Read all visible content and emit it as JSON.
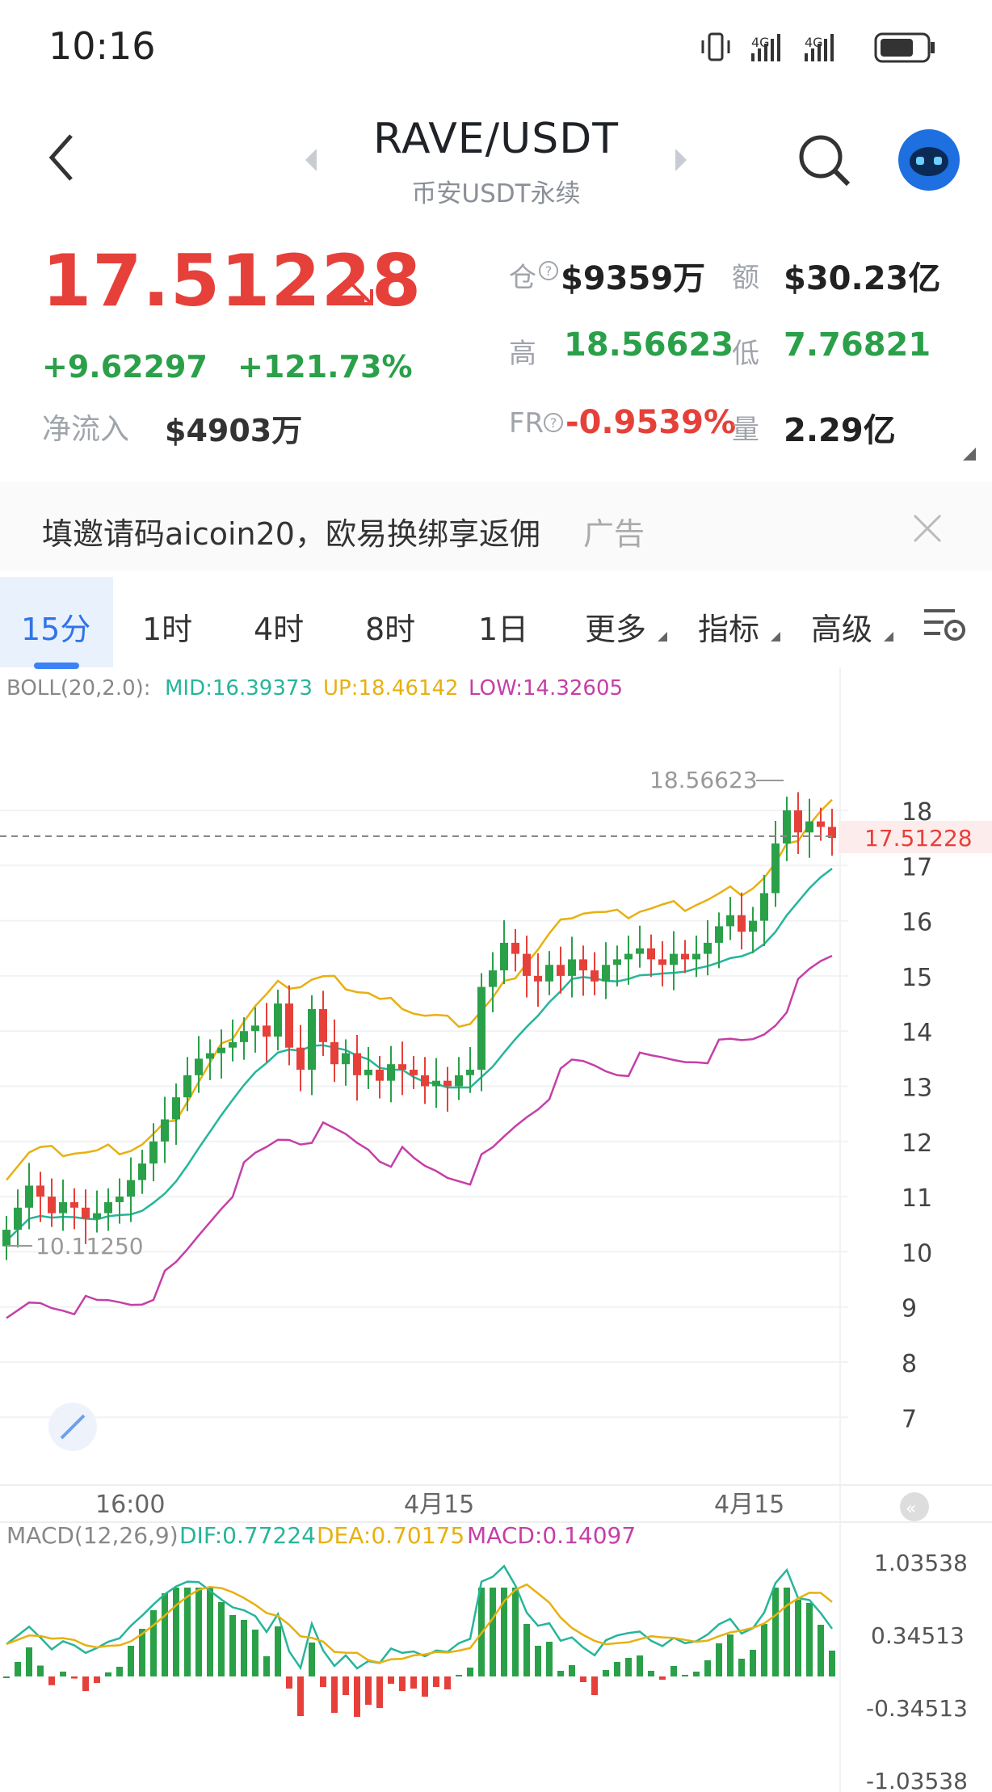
{
  "status_bar": {
    "time": "10:16",
    "net1": "4G",
    "net2": "4G"
  },
  "header": {
    "pair": "RAVE/USDT",
    "exchange": "币安USDT永续"
  },
  "price": {
    "last": "17.51228",
    "change_abs": "+9.62297",
    "change_pct": "+121.73%",
    "netflow_label": "净流入",
    "netflow_value": "$4903万"
  },
  "stats": {
    "oi_label": "仓",
    "oi_value": "$9359万",
    "turnover_label": "额",
    "turnover_value": "$30.23亿",
    "high_label": "高",
    "high_value": "18.56623",
    "low_label": "低",
    "low_value": "7.76821",
    "fr_label": "FR",
    "fr_value": "-0.9539%",
    "vol_label": "量",
    "vol_value": "2.29亿"
  },
  "ad": {
    "text": "填邀请码aicoin20，欧易换绑享返佣",
    "tag": "广告"
  },
  "tabs": [
    {
      "label": "15分",
      "active": true
    },
    {
      "label": "1时"
    },
    {
      "label": "4时"
    },
    {
      "label": "8时"
    },
    {
      "label": "1日"
    },
    {
      "label": "更多"
    },
    {
      "label": "指标"
    },
    {
      "label": "高级"
    }
  ],
  "boll": {
    "name": "BOLL(20,2.0):",
    "mid": "MID:16.39373",
    "up": "UP:18.46142",
    "low": "LOW:14.32605",
    "color_mid": "#26b59a",
    "color_up": "#e8b010",
    "color_low": "#c53fa7"
  },
  "macd": {
    "name": "MACD(12,26,9)",
    "dif": "DIF:0.77224",
    "dea": "DEA:0.70175",
    "macd": "MACD:0.14097",
    "axis": [
      "1.03538",
      "0.34513",
      "-0.34513",
      "-1.03538"
    ]
  },
  "chart_data": {
    "type": "candlestick",
    "y_axis_ticks": [
      18,
      17,
      16,
      15,
      14,
      13,
      12,
      11,
      10,
      9,
      8,
      7
    ],
    "x_axis_labels": [
      "16:00",
      "4月15",
      "4月15"
    ],
    "current_price_label": "17.51228",
    "high_marker_label": "18.56623",
    "low_marker_label": "10.11250",
    "colors": {
      "up": "#2aa049",
      "down": "#e6403a"
    },
    "close_series": [
      10.4,
      10.8,
      11.2,
      11.0,
      10.7,
      10.9,
      10.8,
      10.6,
      10.7,
      10.9,
      11.0,
      11.3,
      11.6,
      12.0,
      12.4,
      12.8,
      13.2,
      13.5,
      13.6,
      13.7,
      13.8,
      14.0,
      14.1,
      13.9,
      14.5,
      13.7,
      13.3,
      14.4,
      13.8,
      13.4,
      13.6,
      13.2,
      13.3,
      13.1,
      13.4,
      13.3,
      13.2,
      13.0,
      13.1,
      13.0,
      13.2,
      13.3,
      14.8,
      15.1,
      15.6,
      15.4,
      15.0,
      14.9,
      15.2,
      15.0,
      15.3,
      15.1,
      14.9,
      15.2,
      15.3,
      15.4,
      15.5,
      15.3,
      15.2,
      15.4,
      15.3,
      15.4,
      15.6,
      15.9,
      16.1,
      15.8,
      16.0,
      16.5,
      17.4,
      18.0,
      17.6,
      17.8,
      17.7,
      17.5
    ]
  }
}
